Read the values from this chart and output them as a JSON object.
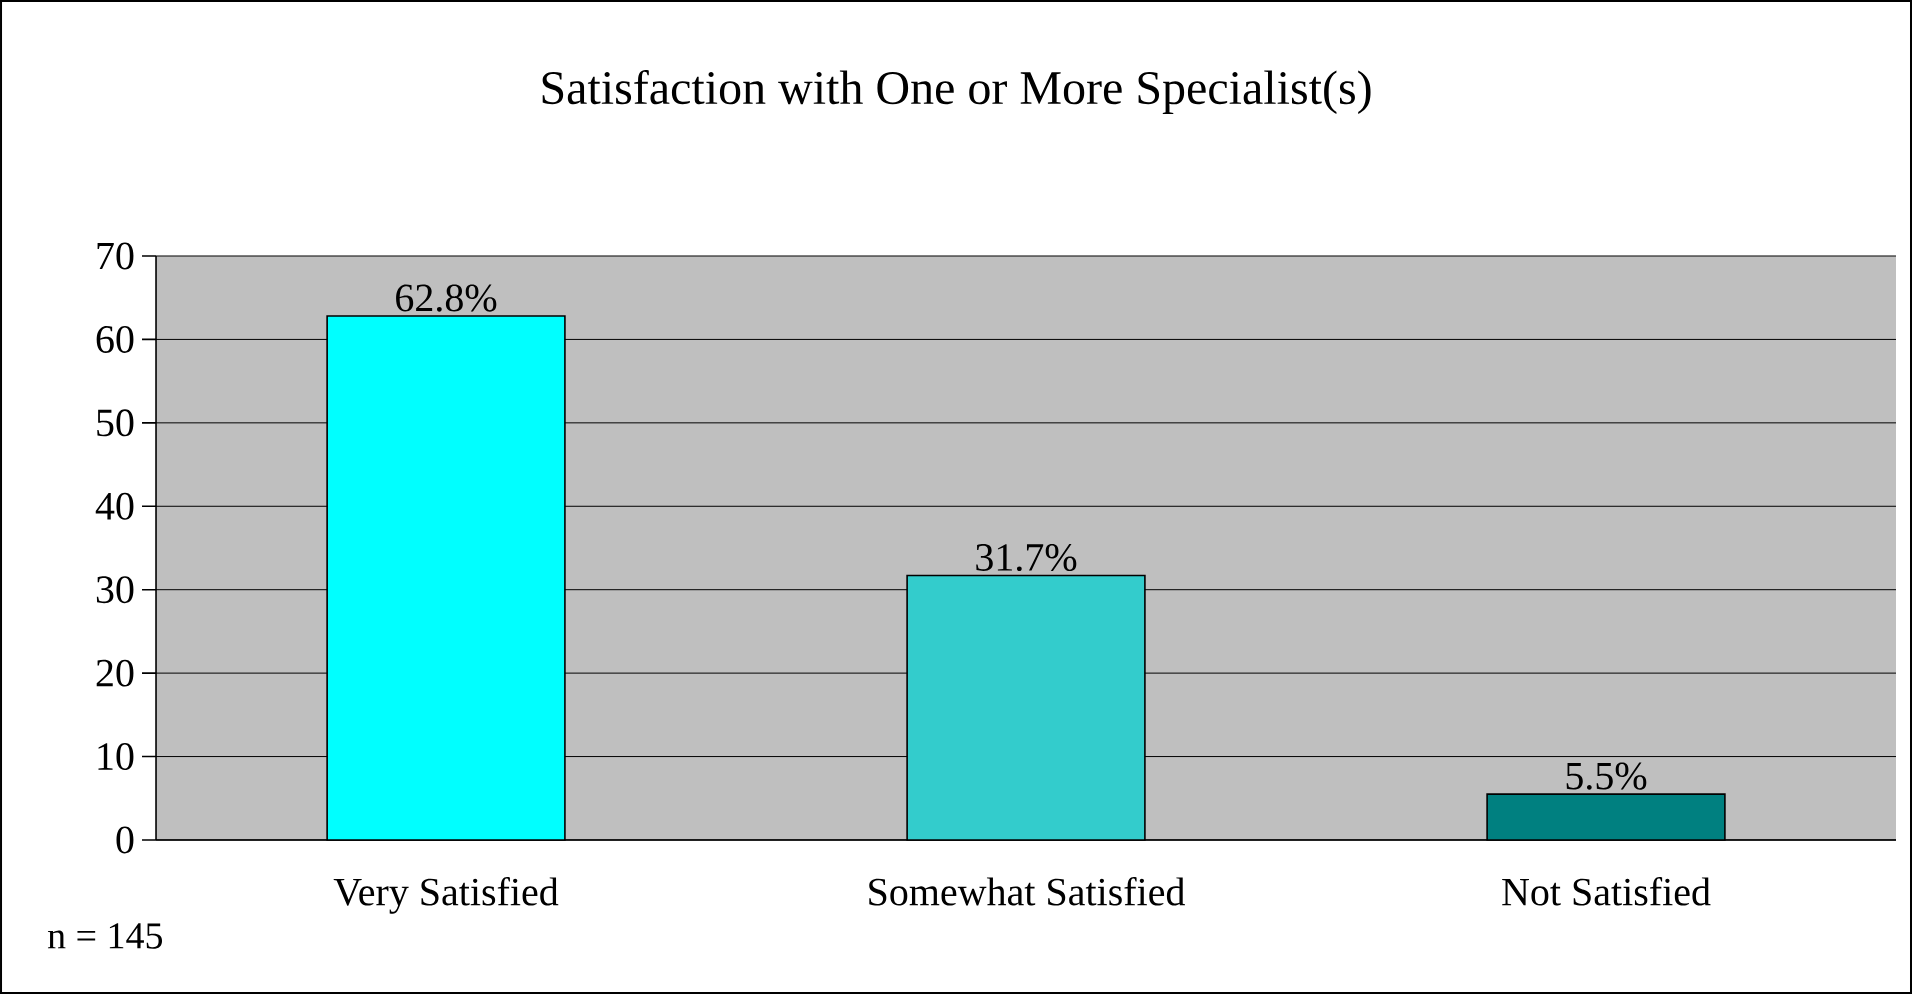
{
  "chart_data": {
    "type": "bar",
    "title": "Satisfaction with One or More Specialist(s)",
    "categories": [
      "Very Satisfied",
      "Somewhat Satisfied",
      "Not Satisfied"
    ],
    "values": [
      62.8,
      31.7,
      5.5
    ],
    "colors": [
      "#00ffff",
      "#33cccc",
      "#008080"
    ],
    "value_labels": [
      "62.8%",
      "31.7%",
      "5.5%"
    ],
    "ylim": [
      0,
      70
    ],
    "yticks": [
      0,
      10,
      20,
      30,
      40,
      50,
      60,
      70
    ],
    "grid": "y",
    "annotations": [
      "n = 145"
    ]
  }
}
